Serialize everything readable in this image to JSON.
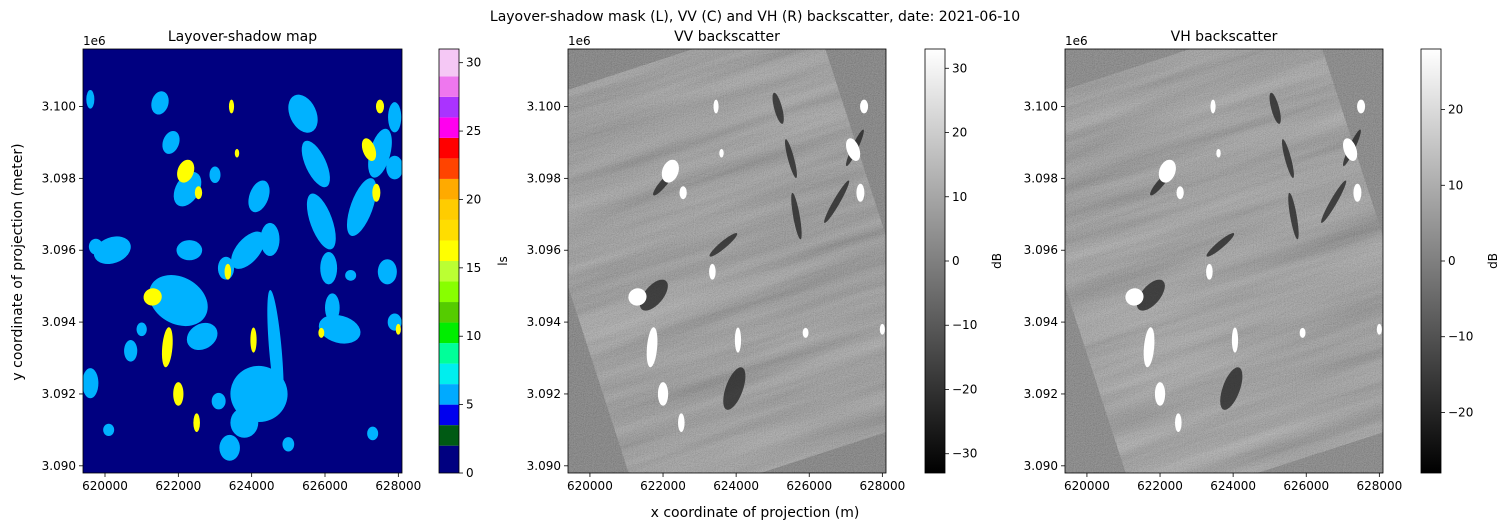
{
  "figure": {
    "suptitle": "Layover-shadow mask (L), VV (C) and VH (R) backscatter, date: 2021-06-10",
    "xlabel": "x coordinate of projection (m)",
    "ylabel": "y coordinate of projection (meter)"
  },
  "chart_data": [
    {
      "type": "heatmap",
      "title": "Layover-shadow map",
      "xlim": [
        619400,
        628100
      ],
      "ylim": [
        3089800,
        3101600
      ],
      "x_ticks": [
        620000,
        622000,
        624000,
        626000,
        628000
      ],
      "x_tick_labels": [
        "620000",
        "622000",
        "624000",
        "626000",
        "628000"
      ],
      "y_ticks": [
        3090000,
        3092000,
        3094000,
        3096000,
        3098000,
        3100000
      ],
      "y_tick_labels": [
        "3.090",
        "3.092",
        "3.094",
        "3.096",
        "3.098",
        "3.100"
      ],
      "y_offset_label": "1e6",
      "background_value": 0,
      "background_color": "#000080",
      "mask_classes": [
        {
          "value": 5,
          "color": "#00b2ff"
        },
        {
          "value": 15,
          "color": "#ffff00"
        }
      ],
      "colorbar": {
        "label": "ls",
        "range": [
          0,
          31
        ],
        "ticks": [
          0,
          5,
          10,
          15,
          20,
          25,
          30
        ],
        "tick_labels": [
          "0",
          "5",
          "10",
          "15",
          "20",
          "25",
          "30"
        ],
        "segments": [
          {
            "from": 0,
            "to": 2,
            "color": "#000080"
          },
          {
            "from": 2,
            "to": 3.5,
            "color": "#005a14"
          },
          {
            "from": 3.5,
            "to": 5,
            "color": "#0000ee"
          },
          {
            "from": 5,
            "to": 6.5,
            "color": "#00aaff"
          },
          {
            "from": 6.5,
            "to": 8,
            "color": "#00eeee"
          },
          {
            "from": 8,
            "to": 9.5,
            "color": "#00ff99"
          },
          {
            "from": 9.5,
            "to": 11,
            "color": "#00ee00"
          },
          {
            "from": 11,
            "to": 12.5,
            "color": "#55cc00"
          },
          {
            "from": 12.5,
            "to": 14,
            "color": "#88ff00"
          },
          {
            "from": 14,
            "to": 15.5,
            "color": "#bbff33"
          },
          {
            "from": 15.5,
            "to": 17,
            "color": "#ffff00"
          },
          {
            "from": 17,
            "to": 18.5,
            "color": "#ffdd00"
          },
          {
            "from": 18.5,
            "to": 20,
            "color": "#ffcc00"
          },
          {
            "from": 20,
            "to": 21.5,
            "color": "#ffaa00"
          },
          {
            "from": 21.5,
            "to": 23,
            "color": "#ff4400"
          },
          {
            "from": 23,
            "to": 24.5,
            "color": "#ff0000"
          },
          {
            "from": 24.5,
            "to": 26,
            "color": "#ff00ee"
          },
          {
            "from": 26,
            "to": 27.5,
            "color": "#aa33ff"
          },
          {
            "from": 27.5,
            "to": 29,
            "color": "#ee77ee"
          },
          {
            "from": 29,
            "to": 31,
            "color": "#f5c8f5"
          }
        ]
      }
    },
    {
      "type": "heatmap",
      "title": "VV backscatter",
      "xlim": [
        619400,
        628100
      ],
      "ylim": [
        3089800,
        3101600
      ],
      "x_ticks": [
        620000,
        622000,
        624000,
        626000,
        628000
      ],
      "x_tick_labels": [
        "620000",
        "622000",
        "624000",
        "626000",
        "628000"
      ],
      "y_ticks": [
        3090000,
        3092000,
        3094000,
        3096000,
        3098000,
        3100000
      ],
      "y_tick_labels": [
        "3.090",
        "3.092",
        "3.094",
        "3.096",
        "3.098",
        "3.100"
      ],
      "y_offset_label": "1e6",
      "base_gray": "#6e6e6e",
      "colorbar": {
        "label": "dB",
        "range": [
          -33,
          33
        ],
        "ticks": [
          -30,
          -20,
          -10,
          0,
          10,
          20,
          30
        ],
        "tick_labels": [
          "−30",
          "−20",
          "−10",
          "0",
          "10",
          "20",
          "30"
        ],
        "cmap": "gray"
      }
    },
    {
      "type": "heatmap",
      "title": "VH backscatter",
      "xlim": [
        619400,
        628100
      ],
      "ylim": [
        3089800,
        3101600
      ],
      "x_ticks": [
        620000,
        622000,
        624000,
        626000,
        628000
      ],
      "x_tick_labels": [
        "620000",
        "622000",
        "624000",
        "626000",
        "628000"
      ],
      "y_ticks": [
        3090000,
        3092000,
        3094000,
        3096000,
        3098000,
        3100000
      ],
      "y_tick_labels": [
        "3.090",
        "3.092",
        "3.094",
        "3.096",
        "3.098",
        "3.100"
      ],
      "y_offset_label": "1e6",
      "base_gray": "#737373",
      "colorbar": {
        "label": "dB",
        "range": [
          -28,
          28
        ],
        "ticks": [
          -20,
          -10,
          0,
          10,
          20
        ],
        "tick_labels": [
          "−20",
          "−10",
          "0",
          "10",
          "20"
        ],
        "cmap": "gray"
      }
    }
  ],
  "mask_regions": {
    "shadow": [
      [
        619600,
        3100200,
        110,
        260,
        0
      ],
      [
        620200,
        3096000,
        520,
        360,
        -20
      ],
      [
        619750,
        3096100,
        190,
        220,
        0
      ],
      [
        621500,
        3100100,
        230,
        330,
        15
      ],
      [
        621800,
        3099000,
        220,
        330,
        20
      ],
      [
        622250,
        3097700,
        320,
        520,
        30
      ],
      [
        623000,
        3098100,
        150,
        230,
        0
      ],
      [
        622000,
        3094600,
        850,
        650,
        30
      ],
      [
        622300,
        3096000,
        350,
        280,
        0
      ],
      [
        622650,
        3093600,
        440,
        350,
        -30
      ],
      [
        623300,
        3095500,
        220,
        320,
        0
      ],
      [
        623900,
        3096000,
        320,
        620,
        40
      ],
      [
        624200,
        3097500,
        260,
        460,
        20
      ],
      [
        624500,
        3096300,
        260,
        460,
        0
      ],
      [
        624650,
        3093200,
        170,
        1700,
        -5
      ],
      [
        624200,
        3092000,
        780,
        780,
        10
      ],
      [
        623800,
        3091200,
        380,
        420,
        0
      ],
      [
        623400,
        3090500,
        280,
        360,
        0
      ],
      [
        625400,
        3099800,
        360,
        560,
        -25
      ],
      [
        625750,
        3098400,
        280,
        700,
        -25
      ],
      [
        625900,
        3096800,
        300,
        820,
        -20
      ],
      [
        626100,
        3095500,
        230,
        450,
        0
      ],
      [
        626200,
        3094400,
        200,
        400,
        0
      ],
      [
        626400,
        3093800,
        580,
        380,
        15
      ],
      [
        627000,
        3097200,
        300,
        850,
        20
      ],
      [
        627500,
        3098700,
        280,
        700,
        15
      ],
      [
        627900,
        3099700,
        180,
        420,
        0
      ],
      [
        627900,
        3098300,
        230,
        330,
        0
      ],
      [
        627700,
        3095400,
        260,
        350,
        0
      ],
      [
        627900,
        3094000,
        190,
        240,
        0
      ],
      [
        620700,
        3093200,
        180,
        300,
        0
      ],
      [
        619600,
        3092300,
        220,
        420,
        0
      ],
      [
        620100,
        3091000,
        150,
        170,
        0
      ],
      [
        621000,
        3093800,
        140,
        190,
        0
      ],
      [
        623100,
        3091800,
        190,
        230,
        0
      ],
      [
        627300,
        3090900,
        150,
        190,
        0
      ],
      [
        626700,
        3095300,
        150,
        150,
        0
      ],
      [
        625000,
        3090600,
        160,
        200,
        0
      ]
    ],
    "layover": [
      [
        622200,
        3098200,
        220,
        330,
        20
      ],
      [
        622550,
        3097600,
        100,
        180,
        0
      ],
      [
        623450,
        3100000,
        70,
        190,
        0
      ],
      [
        623600,
        3098700,
        60,
        120,
        0
      ],
      [
        623350,
        3095400,
        90,
        220,
        0
      ],
      [
        621300,
        3094700,
        250,
        240,
        -20
      ],
      [
        621700,
        3093300,
        140,
        560,
        5
      ],
      [
        622000,
        3092000,
        140,
        330,
        0
      ],
      [
        622500,
        3091200,
        90,
        260,
        0
      ],
      [
        624050,
        3093500,
        85,
        350,
        0
      ],
      [
        625900,
        3093700,
        80,
        140,
        0
      ],
      [
        627200,
        3098800,
        170,
        330,
        -20
      ],
      [
        627400,
        3097600,
        110,
        250,
        0
      ],
      [
        628000,
        3093800,
        70,
        150,
        0
      ],
      [
        627500,
        3100000,
        110,
        190,
        0
      ]
    ]
  }
}
